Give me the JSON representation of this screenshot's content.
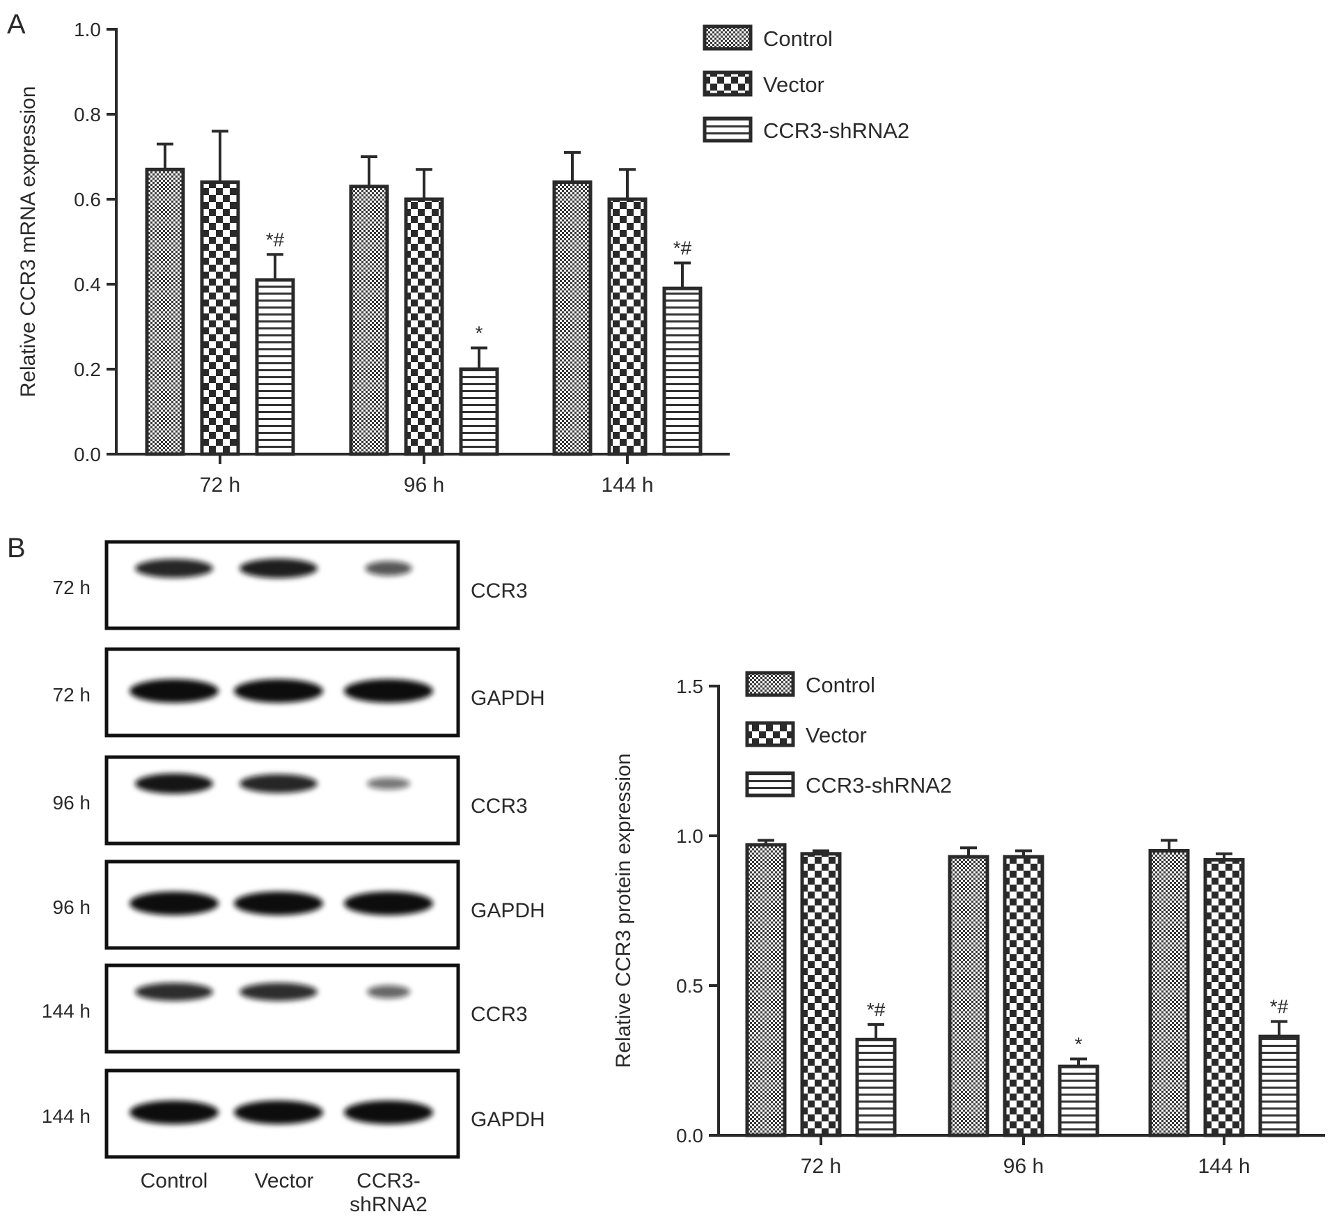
{
  "panels": {
    "a": {
      "letter": "A"
    },
    "b": {
      "letter": "B"
    }
  },
  "legend": [
    "Control",
    "Vector",
    "CCR3-shRNA2"
  ],
  "chart_data": [
    {
      "type": "bar",
      "ylabel": "Relative CCR3 mRNA expression",
      "xlabel": "",
      "categories": [
        "72 h",
        "96 h",
        "144 h"
      ],
      "ylim": [
        0,
        1.0
      ],
      "yticks": [
        0.0,
        0.2,
        0.4,
        0.6,
        0.8,
        1.0
      ],
      "tick_labels": [
        "0.0",
        "0.2",
        "0.4",
        "0.6",
        "0.8",
        "1.0"
      ],
      "legend_position": "top-right",
      "series": [
        {
          "name": "Control",
          "values": [
            0.67,
            0.63,
            0.64
          ],
          "errors": [
            0.06,
            0.07,
            0.07
          ],
          "annotations": [
            "",
            "",
            ""
          ]
        },
        {
          "name": "Vector",
          "values": [
            0.64,
            0.6,
            0.6
          ],
          "errors": [
            0.12,
            0.07,
            0.07
          ],
          "annotations": [
            "",
            "",
            ""
          ]
        },
        {
          "name": "CCR3-shRNA2",
          "values": [
            0.41,
            0.2,
            0.39
          ],
          "errors": [
            0.06,
            0.05,
            0.06
          ],
          "annotations": [
            "*#",
            "*",
            "*#"
          ]
        }
      ]
    },
    {
      "type": "bar",
      "ylabel": "Relative CCR3 protein expression",
      "xlabel": "",
      "categories": [
        "72 h",
        "96 h",
        "144 h"
      ],
      "ylim": [
        0,
        1.5
      ],
      "yticks": [
        0.0,
        0.5,
        1.0,
        1.5
      ],
      "tick_labels": [
        "0.0",
        "0.5",
        "1.0",
        "1.5"
      ],
      "legend_position": "top-left",
      "series": [
        {
          "name": "Control",
          "values": [
            0.97,
            0.93,
            0.95
          ],
          "errors": [
            0.015,
            0.03,
            0.035
          ],
          "annotations": [
            "",
            "",
            ""
          ]
        },
        {
          "name": "Vector",
          "values": [
            0.94,
            0.93,
            0.92
          ],
          "errors": [
            0.01,
            0.02,
            0.02
          ],
          "annotations": [
            "",
            "",
            ""
          ]
        },
        {
          "name": "CCR3-shRNA2",
          "values": [
            0.32,
            0.23,
            0.33
          ],
          "errors": [
            0.05,
            0.025,
            0.05
          ],
          "annotations": [
            "*#",
            "*",
            "*#"
          ]
        }
      ]
    }
  ],
  "blot": {
    "rows": [
      {
        "time": "72 h",
        "protein": "CCR3",
        "intensity": [
          0.85,
          0.9,
          0.55
        ]
      },
      {
        "time": "72 h",
        "protein": "GAPDH",
        "intensity": [
          1.0,
          1.0,
          1.0
        ]
      },
      {
        "time": "96 h",
        "protein": "CCR3",
        "intensity": [
          0.95,
          0.85,
          0.35
        ]
      },
      {
        "time": "96 h",
        "protein": "GAPDH",
        "intensity": [
          1.0,
          1.0,
          1.0
        ]
      },
      {
        "time": "144 h",
        "protein": "CCR3",
        "intensity": [
          0.8,
          0.8,
          0.45
        ]
      },
      {
        "time": "144 h",
        "protein": "GAPDH",
        "intensity": [
          1.0,
          1.0,
          1.0
        ]
      }
    ],
    "lanes": [
      "Control",
      "Vector",
      "CCR3-\nshRNA2"
    ]
  }
}
